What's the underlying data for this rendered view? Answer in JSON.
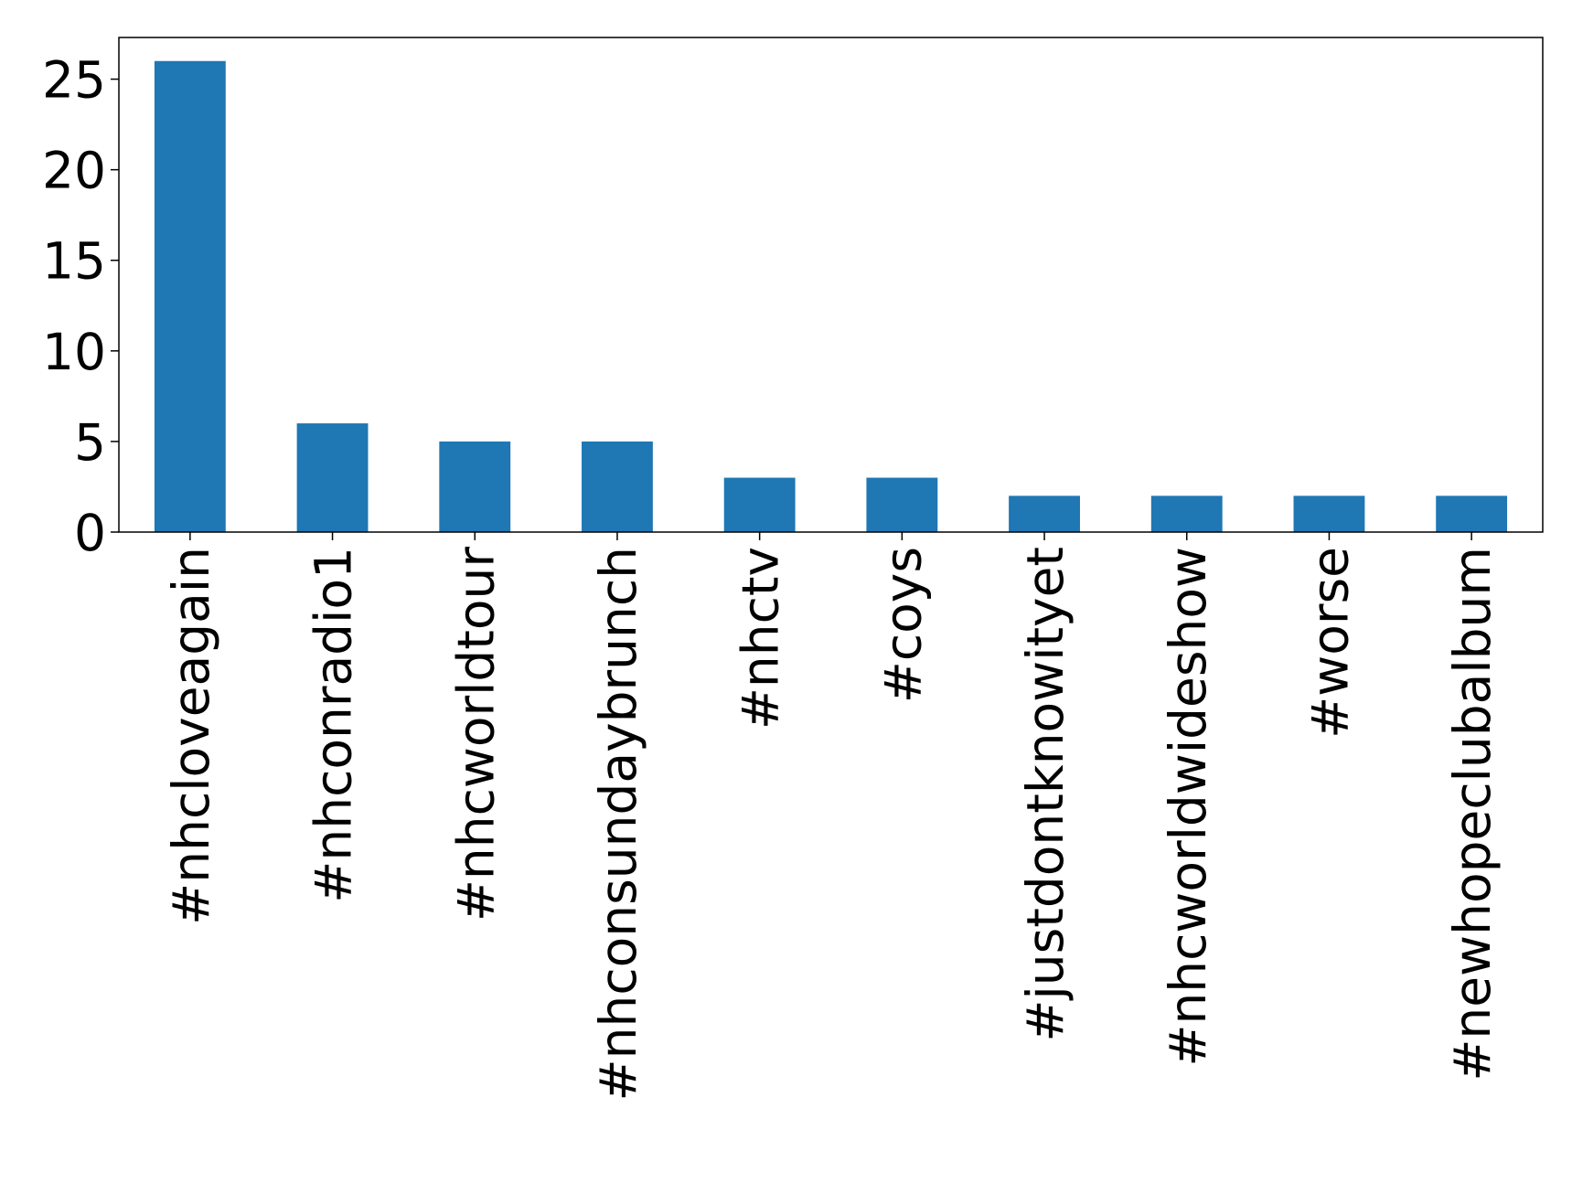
{
  "chart_data": {
    "type": "bar",
    "categories": [
      "#nhcloveagain",
      "#nhconradio1",
      "#nhcworldtour",
      "#nhconsundaybrunch",
      "#nhctv",
      "#coys",
      "#justdontknowityet",
      "#nhcworldwideshow",
      "#worse",
      "#newhopeclubalbum"
    ],
    "values": [
      26,
      6,
      5,
      5,
      3,
      3,
      2,
      2,
      2,
      2
    ],
    "color": "#1f77b4",
    "ylim": [
      0,
      27.3
    ],
    "yticks": [
      0,
      5,
      10,
      15,
      20,
      25
    ],
    "grid": false
  }
}
